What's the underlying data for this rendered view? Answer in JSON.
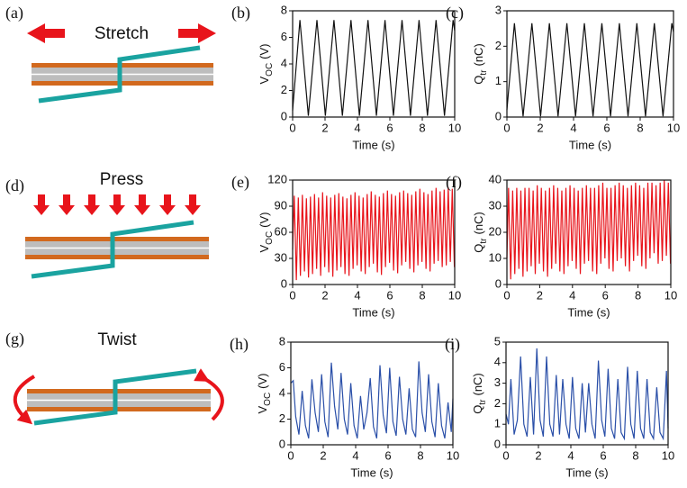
{
  "panels": [
    {
      "label": "(a)",
      "caption": "Stretch"
    },
    {
      "label": "(d)",
      "caption": "Press"
    },
    {
      "label": "(g)",
      "caption": "Twist"
    }
  ],
  "chart_data": [
    {
      "type": "line",
      "label": "(b)",
      "color": "#111111",
      "xlabel": "Time (s)",
      "ylabel": [
        "V",
        "OC",
        "(V)"
      ],
      "xlim": [
        0,
        10
      ],
      "xticks": [
        0,
        2,
        4,
        6,
        8,
        10
      ],
      "ylim": [
        0,
        8
      ],
      "yticks": [
        0,
        2,
        4,
        6,
        8
      ],
      "x": [
        0,
        0.45,
        0.97,
        1.5,
        2.02,
        2.55,
        3.07,
        3.6,
        4.12,
        4.65,
        5.17,
        5.7,
        6.22,
        6.75,
        7.27,
        7.8,
        8.32,
        8.85,
        9.37,
        9.9,
        10
      ],
      "values": [
        0.5,
        7.3,
        0.1,
        7.3,
        0.1,
        7.3,
        0.1,
        7.3,
        0.1,
        7.3,
        0.1,
        7.3,
        0.1,
        7.3,
        0.1,
        7.3,
        0.1,
        7.3,
        0.1,
        7.3,
        6.5
      ]
    },
    {
      "type": "line",
      "label": "(c)",
      "color": "#111111",
      "xlabel": "Time (s)",
      "ylabel": [
        "Q",
        "tr",
        "(nC)"
      ],
      "xlim": [
        0,
        10
      ],
      "xticks": [
        0,
        2,
        4,
        6,
        8,
        10
      ],
      "ylim": [
        0,
        3
      ],
      "yticks": [
        0,
        1,
        2,
        3
      ],
      "x": [
        0,
        0.45,
        0.97,
        1.5,
        2.02,
        2.55,
        3.07,
        3.6,
        4.12,
        4.65,
        5.17,
        5.7,
        6.22,
        6.75,
        7.27,
        7.8,
        8.32,
        8.85,
        9.37,
        9.9,
        10
      ],
      "values": [
        0.2,
        2.65,
        0.02,
        2.65,
        0.02,
        2.65,
        0.02,
        2.65,
        0.02,
        2.65,
        0.02,
        2.65,
        0.02,
        2.65,
        0.02,
        2.65,
        0.02,
        2.65,
        0.02,
        2.65,
        2.4
      ]
    },
    {
      "type": "line",
      "label": "(e)",
      "color": "#e8141b",
      "xlabel": "Time (s)",
      "ylabel": [
        "V",
        "OC",
        "(V)"
      ],
      "xlim": [
        0,
        10
      ],
      "xticks": [
        0,
        2,
        4,
        6,
        8,
        10
      ],
      "ylim": [
        0,
        120
      ],
      "yticks": [
        0,
        30,
        60,
        90,
        120
      ],
      "x": [
        0,
        0.1,
        0.23,
        0.35,
        0.48,
        0.6,
        0.73,
        0.85,
        0.98,
        1.1,
        1.23,
        1.35,
        1.48,
        1.6,
        1.73,
        1.85,
        1.98,
        2.1,
        2.23,
        2.35,
        2.48,
        2.6,
        2.73,
        2.85,
        2.98,
        3.1,
        3.23,
        3.35,
        3.48,
        3.6,
        3.73,
        3.85,
        3.98,
        4.1,
        4.23,
        4.35,
        4.48,
        4.6,
        4.73,
        4.85,
        4.98,
        5.1,
        5.23,
        5.35,
        5.48,
        5.6,
        5.73,
        5.85,
        5.98,
        6.1,
        6.23,
        6.35,
        6.48,
        6.6,
        6.73,
        6.85,
        6.98,
        7.1,
        7.23,
        7.35,
        7.48,
        7.6,
        7.73,
        7.85,
        7.98,
        8.1,
        8.23,
        8.35,
        8.48,
        8.6,
        8.73,
        8.85,
        8.98,
        9.1,
        9.23,
        9.35,
        9.48,
        9.6,
        9.73,
        9.85,
        9.98
      ],
      "values": [
        40,
        102,
        5,
        100,
        10,
        103,
        15,
        99,
        8,
        101,
        12,
        104,
        18,
        100,
        10,
        106,
        20,
        102,
        14,
        100,
        9,
        103,
        16,
        105,
        20,
        101,
        12,
        99,
        10,
        103,
        18,
        106,
        22,
        102,
        15,
        100,
        12,
        104,
        20,
        107,
        24,
        103,
        14,
        101,
        11,
        105,
        20,
        108,
        25,
        104,
        16,
        102,
        13,
        106,
        22,
        108,
        26,
        105,
        18,
        103,
        14,
        107,
        22,
        110,
        26,
        106,
        18,
        104,
        15,
        108,
        24,
        111,
        27,
        107,
        20,
        109,
        22,
        112,
        26,
        110,
        20
      ]
    },
    {
      "type": "line",
      "label": "(f)",
      "color": "#e8141b",
      "xlabel": "Time (s)",
      "ylabel": [
        "Q",
        "tr",
        "(nC)"
      ],
      "xlim": [
        0,
        10
      ],
      "xticks": [
        0,
        2,
        4,
        6,
        8,
        10
      ],
      "ylim": [
        0,
        40
      ],
      "yticks": [
        0,
        10,
        20,
        30,
        40
      ],
      "x": [
        0,
        0.1,
        0.23,
        0.35,
        0.48,
        0.6,
        0.73,
        0.85,
        0.98,
        1.1,
        1.23,
        1.35,
        1.48,
        1.6,
        1.73,
        1.85,
        1.98,
        2.1,
        2.23,
        2.35,
        2.48,
        2.6,
        2.73,
        2.85,
        2.98,
        3.1,
        3.23,
        3.35,
        3.48,
        3.6,
        3.73,
        3.85,
        3.98,
        4.1,
        4.23,
        4.35,
        4.48,
        4.6,
        4.73,
        4.85,
        4.98,
        5.1,
        5.23,
        5.35,
        5.48,
        5.6,
        5.73,
        5.85,
        5.98,
        6.1,
        6.23,
        6.35,
        6.48,
        6.6,
        6.73,
        6.85,
        6.98,
        7.1,
        7.23,
        7.35,
        7.48,
        7.6,
        7.73,
        7.85,
        7.98,
        8.1,
        8.23,
        8.35,
        8.48,
        8.6,
        8.73,
        8.85,
        8.98,
        9.1,
        9.23,
        9.35,
        9.48,
        9.6,
        9.73,
        9.85,
        9.98
      ],
      "values": [
        10,
        37,
        2,
        36,
        4,
        37,
        6,
        36,
        3,
        37,
        5,
        37,
        7,
        36,
        4,
        38,
        8,
        37,
        5,
        36,
        3,
        37,
        6,
        38,
        8,
        37,
        5,
        36,
        4,
        37,
        7,
        38,
        9,
        37,
        6,
        36,
        4,
        37,
        8,
        38,
        9,
        37,
        5,
        37,
        4,
        38,
        8,
        39,
        10,
        37,
        6,
        37,
        5,
        38,
        9,
        39,
        10,
        38,
        7,
        37,
        5,
        38,
        9,
        39,
        11,
        38,
        7,
        37,
        6,
        39,
        10,
        39,
        12,
        38,
        8,
        39,
        9,
        40,
        11,
        39,
        8
      ]
    },
    {
      "type": "line",
      "label": "(h)",
      "color": "#2a4fa8",
      "xlabel": "Time (s)",
      "ylabel": [
        "V",
        "OC",
        "(V)"
      ],
      "xlim": [
        0,
        10
      ],
      "xticks": [
        0,
        2,
        4,
        6,
        8,
        10
      ],
      "ylim": [
        0,
        8
      ],
      "yticks": [
        0,
        2,
        4,
        6,
        8
      ],
      "x": [
        0,
        0.15,
        0.3,
        0.5,
        0.7,
        0.9,
        1.1,
        1.3,
        1.5,
        1.7,
        1.9,
        2.1,
        2.3,
        2.5,
        2.7,
        2.9,
        3.1,
        3.3,
        3.5,
        3.7,
        3.9,
        4.1,
        4.3,
        4.5,
        4.7,
        4.9,
        5.1,
        5.3,
        5.5,
        5.7,
        5.9,
        6.1,
        6.3,
        6.5,
        6.7,
        6.9,
        7.1,
        7.3,
        7.5,
        7.7,
        7.9,
        8.1,
        8.3,
        8.5,
        8.7,
        8.9,
        9.1,
        9.3,
        9.5,
        9.7,
        9.9,
        10
      ],
      "values": [
        4.8,
        5,
        2.2,
        0.8,
        4.2,
        1.5,
        0.5,
        5.1,
        2.5,
        1,
        5.5,
        1.8,
        0.6,
        6.4,
        3,
        1.2,
        5.6,
        2,
        0.8,
        4.8,
        1.5,
        0.5,
        3.8,
        1.2,
        2.5,
        5.2,
        1.4,
        0.5,
        6.2,
        2.3,
        0.9,
        6,
        1.8,
        0.7,
        5.3,
        2,
        0.8,
        4.4,
        1.2,
        0.6,
        6.5,
        2.5,
        1,
        5.5,
        1.8,
        0.6,
        4.8,
        1.5,
        0.5,
        3.3,
        1,
        3.6
      ]
    },
    {
      "type": "line",
      "label": "(i)",
      "color": "#2a4fa8",
      "xlabel": "Time (s)",
      "ylabel": [
        "Q",
        "tr",
        "(nC)"
      ],
      "xlim": [
        0,
        10
      ],
      "xticks": [
        0,
        2,
        4,
        6,
        8,
        10
      ],
      "ylim": [
        0,
        5
      ],
      "yticks": [
        0,
        1,
        2,
        3,
        4,
        5
      ],
      "x": [
        0,
        0.15,
        0.3,
        0.5,
        0.7,
        0.9,
        1.1,
        1.3,
        1.5,
        1.7,
        1.9,
        2.1,
        2.3,
        2.5,
        2.7,
        2.9,
        3.1,
        3.3,
        3.5,
        3.7,
        3.9,
        4.1,
        4.3,
        4.5,
        4.7,
        4.9,
        5.1,
        5.3,
        5.5,
        5.7,
        5.9,
        6.1,
        6.3,
        6.5,
        6.7,
        6.9,
        7.1,
        7.3,
        7.5,
        7.7,
        7.9,
        8.1,
        8.3,
        8.5,
        8.7,
        8.9,
        9.1,
        9.3,
        9.5,
        9.7,
        9.9,
        10
      ],
      "values": [
        1.5,
        1,
        3.2,
        0.5,
        1.2,
        4.3,
        1,
        0.4,
        3.3,
        0.5,
        4.7,
        1.2,
        0.4,
        4.3,
        1,
        0.4,
        3.4,
        0.5,
        3.2,
        1,
        0.3,
        3.3,
        0.8,
        0.3,
        3,
        0.6,
        3,
        1,
        0.3,
        4.1,
        1.2,
        0.4,
        3.7,
        0.8,
        0.3,
        3.2,
        0.6,
        0.3,
        3.8,
        1,
        0.3,
        3.6,
        0.8,
        0.3,
        3.2,
        0.6,
        0.3,
        2.8,
        0.6,
        0.3,
        3.6,
        0.8
      ]
    }
  ]
}
